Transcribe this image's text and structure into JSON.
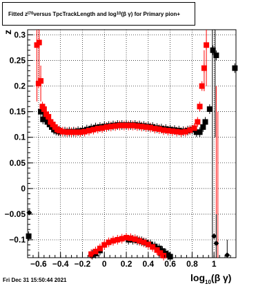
{
  "title": {
    "prefix": "Fitted  z",
    "sub1": "I70",
    "middle": " versus TpcTrackLength and log",
    "sub2": "10",
    "suffix": "(β  γ) for Primary pion+"
  },
  "footer": "Fri Dec 31 15:50:44 2021",
  "xlabel": {
    "prefix": "log",
    "sub": "10",
    "suffix": "(β γ)"
  },
  "ylabel": "z",
  "chart_data": {
    "type": "scatter",
    "xlim": [
      -0.7,
      1.2
    ],
    "ylim": [
      -0.135,
      0.31
    ],
    "grid": true,
    "x_ticks": [
      -0.6,
      -0.4,
      -0.2,
      0,
      0.2,
      0.4,
      0.6,
      0.8,
      1
    ],
    "x_tick_labels": [
      "−0.6",
      "−0.4",
      "−0.2",
      "0",
      "0.2",
      "0.4",
      "0.6",
      "0.8",
      "1"
    ],
    "y_ticks": [
      -0.1,
      -0.05,
      0,
      0.05,
      0.1,
      0.15,
      0.2,
      0.25,
      0.3
    ],
    "y_tick_labels": [
      "−0.1",
      "−0.05",
      "0",
      "0.05",
      "0.1",
      "0.15",
      "0.2",
      "0.25",
      "0.3"
    ],
    "series": [
      {
        "color": "#000000",
        "marker": "square",
        "points": [
          {
            "x": -0.58,
            "y": 0.15
          },
          {
            "x": -0.56,
            "y": 0.135
          },
          {
            "x": -0.54,
            "y": 0.14
          },
          {
            "x": -0.52,
            "y": 0.13
          },
          {
            "x": -0.5,
            "y": 0.125
          },
          {
            "x": -0.48,
            "y": 0.12
          },
          {
            "x": -0.46,
            "y": 0.115
          },
          {
            "x": -0.44,
            "y": 0.113
          },
          {
            "x": -0.42,
            "y": 0.112
          },
          {
            "x": -0.4,
            "y": 0.111
          },
          {
            "x": -0.36,
            "y": 0.111
          },
          {
            "x": -0.32,
            "y": 0.111
          },
          {
            "x": -0.28,
            "y": 0.111
          },
          {
            "x": -0.24,
            "y": 0.112
          },
          {
            "x": -0.2,
            "y": 0.113
          },
          {
            "x": -0.16,
            "y": 0.115
          },
          {
            "x": -0.12,
            "y": 0.117
          },
          {
            "x": -0.08,
            "y": 0.119
          },
          {
            "x": -0.04,
            "y": 0.12
          },
          {
            "x": 0.0,
            "y": 0.121
          },
          {
            "x": 0.04,
            "y": 0.122
          },
          {
            "x": 0.08,
            "y": 0.123
          },
          {
            "x": 0.12,
            "y": 0.124
          },
          {
            "x": 0.16,
            "y": 0.124
          },
          {
            "x": 0.2,
            "y": 0.124
          },
          {
            "x": 0.24,
            "y": 0.124
          },
          {
            "x": 0.28,
            "y": 0.124
          },
          {
            "x": 0.32,
            "y": 0.123
          },
          {
            "x": 0.36,
            "y": 0.122
          },
          {
            "x": 0.4,
            "y": 0.121
          },
          {
            "x": 0.44,
            "y": 0.12
          },
          {
            "x": 0.48,
            "y": 0.118
          },
          {
            "x": 0.52,
            "y": 0.117
          },
          {
            "x": 0.56,
            "y": 0.116
          },
          {
            "x": 0.6,
            "y": 0.115
          },
          {
            "x": 0.64,
            "y": 0.114
          },
          {
            "x": 0.68,
            "y": 0.113
          },
          {
            "x": 0.72,
            "y": 0.112
          },
          {
            "x": 0.76,
            "y": 0.113
          },
          {
            "x": 0.8,
            "y": 0.115
          },
          {
            "x": 0.84,
            "y": 0.11
          },
          {
            "x": 0.87,
            "y": 0.11
          },
          {
            "x": 0.9,
            "y": 0.12
          },
          {
            "x": 0.92,
            "y": 0.13
          },
          {
            "x": 0.96,
            "y": 0.155
          },
          {
            "x": 0.99,
            "y": 0.27
          },
          {
            "x": 1.02,
            "y": 0.26
          },
          {
            "x": 1.19,
            "y": 0.235
          },
          {
            "x": 0.22,
            "y": -0.1
          },
          {
            "x": 0.26,
            "y": -0.1
          },
          {
            "x": 0.3,
            "y": -0.101
          },
          {
            "x": 0.34,
            "y": -0.103
          },
          {
            "x": 0.38,
            "y": -0.106
          },
          {
            "x": 0.42,
            "y": -0.109
          },
          {
            "x": 0.46,
            "y": -0.113
          },
          {
            "x": 0.5,
            "y": -0.117
          },
          {
            "x": 0.53,
            "y": -0.122
          },
          {
            "x": 0.56,
            "y": -0.127
          },
          {
            "x": 0.58,
            "y": -0.13
          },
          {
            "x": 0.6,
            "y": -0.133
          },
          {
            "x": -0.11,
            "y": -0.129
          },
          {
            "x": -0.08,
            "y": -0.127
          },
          {
            "x": -0.04,
            "y": -0.121
          },
          {
            "x": -0.69,
            "y": -0.093
          }
        ]
      },
      {
        "color": "#ff0000",
        "marker": "square",
        "points": [
          {
            "x": -0.615,
            "y": 0.28
          },
          {
            "x": -0.595,
            "y": 0.285
          },
          {
            "x": -0.58,
            "y": 0.21
          },
          {
            "x": -0.6,
            "y": 0.205
          },
          {
            "x": -0.565,
            "y": 0.16
          },
          {
            "x": -0.55,
            "y": 0.155
          },
          {
            "x": -0.53,
            "y": 0.145
          },
          {
            "x": -0.51,
            "y": 0.14
          },
          {
            "x": -0.49,
            "y": 0.13
          },
          {
            "x": -0.47,
            "y": 0.125
          },
          {
            "x": -0.45,
            "y": 0.12
          },
          {
            "x": -0.43,
            "y": 0.115
          },
          {
            "x": -0.41,
            "y": 0.113
          },
          {
            "x": -0.38,
            "y": 0.111
          },
          {
            "x": -0.34,
            "y": 0.11
          },
          {
            "x": -0.3,
            "y": 0.11
          },
          {
            "x": -0.26,
            "y": 0.11
          },
          {
            "x": -0.22,
            "y": 0.11
          },
          {
            "x": -0.18,
            "y": 0.111
          },
          {
            "x": -0.14,
            "y": 0.113
          },
          {
            "x": -0.1,
            "y": 0.115
          },
          {
            "x": -0.06,
            "y": 0.117
          },
          {
            "x": -0.02,
            "y": 0.118
          },
          {
            "x": 0.02,
            "y": 0.12
          },
          {
            "x": 0.06,
            "y": 0.121
          },
          {
            "x": 0.1,
            "y": 0.122
          },
          {
            "x": 0.14,
            "y": 0.123
          },
          {
            "x": 0.18,
            "y": 0.123
          },
          {
            "x": 0.22,
            "y": 0.123
          },
          {
            "x": 0.26,
            "y": 0.123
          },
          {
            "x": 0.3,
            "y": 0.122
          },
          {
            "x": 0.34,
            "y": 0.121
          },
          {
            "x": 0.38,
            "y": 0.12
          },
          {
            "x": 0.42,
            "y": 0.119
          },
          {
            "x": 0.46,
            "y": 0.117
          },
          {
            "x": 0.5,
            "y": 0.116
          },
          {
            "x": 0.54,
            "y": 0.114
          },
          {
            "x": 0.58,
            "y": 0.113
          },
          {
            "x": 0.62,
            "y": 0.112
          },
          {
            "x": 0.66,
            "y": 0.111
          },
          {
            "x": 0.7,
            "y": 0.11
          },
          {
            "x": 0.74,
            "y": 0.111
          },
          {
            "x": 0.78,
            "y": 0.114
          },
          {
            "x": 0.82,
            "y": 0.118
          },
          {
            "x": 0.85,
            "y": 0.13
          },
          {
            "x": 0.87,
            "y": 0.16
          },
          {
            "x": 0.89,
            "y": 0.2
          },
          {
            "x": 0.91,
            "y": 0.235
          },
          {
            "x": 0.93,
            "y": 0.28
          },
          {
            "x": -0.12,
            "y": -0.128
          },
          {
            "x": -0.08,
            "y": -0.123
          },
          {
            "x": -0.04,
            "y": -0.117
          },
          {
            "x": 0.0,
            "y": -0.11
          },
          {
            "x": 0.04,
            "y": -0.105
          },
          {
            "x": 0.08,
            "y": -0.102
          },
          {
            "x": 0.12,
            "y": -0.1
          },
          {
            "x": 0.16,
            "y": -0.098
          },
          {
            "x": 0.2,
            "y": -0.096
          },
          {
            "x": 0.24,
            "y": -0.097
          },
          {
            "x": 0.28,
            "y": -0.099
          },
          {
            "x": 0.32,
            "y": -0.102
          },
          {
            "x": 0.36,
            "y": -0.105
          },
          {
            "x": 0.4,
            "y": -0.109
          },
          {
            "x": 0.44,
            "y": -0.114
          },
          {
            "x": 0.48,
            "y": -0.12
          },
          {
            "x": 0.51,
            "y": -0.126
          },
          {
            "x": 0.54,
            "y": -0.131
          }
        ]
      }
    ],
    "diamonds": [
      {
        "x": -0.685,
        "y": -0.047
      },
      {
        "x": 1.0,
        "y": -0.093
      },
      {
        "x": 1.02,
        "y": -0.107
      },
      {
        "x": 1.12,
        "y": -0.13
      }
    ],
    "error_lines": [
      {
        "color": "#ff0000",
        "x": -0.615,
        "y1": 0.31,
        "y2": 0.17
      },
      {
        "color": "#ff0000",
        "x": -0.595,
        "y1": 0.31,
        "y2": 0.2
      },
      {
        "color": "#ff0000",
        "x": -0.58,
        "y1": 0.24,
        "y2": 0.17
      },
      {
        "color": "#ff0000",
        "x": 0.93,
        "y1": 0.31,
        "y2": 0.2
      },
      {
        "color": "#ff0000",
        "x": 0.91,
        "y1": 0.27,
        "y2": 0.19
      },
      {
        "color": "#ff0000",
        "x": 1.02,
        "y1": 0.2,
        "y2": -0.135
      },
      {
        "color": "#ff0000",
        "x": 1.035,
        "y1": 0.15,
        "y2": -0.135
      },
      {
        "color": "#000000",
        "x": 0.985,
        "y1": 0.31,
        "y2": -0.135
      },
      {
        "color": "#000000",
        "x": 1.01,
        "y1": 0.31,
        "y2": 0.1
      },
      {
        "color": "#000000",
        "x": 1.02,
        "y1": -0.05,
        "y2": -0.135
      },
      {
        "color": "#000000",
        "x": 1.12,
        "y1": -0.1,
        "y2": -0.135
      }
    ]
  }
}
